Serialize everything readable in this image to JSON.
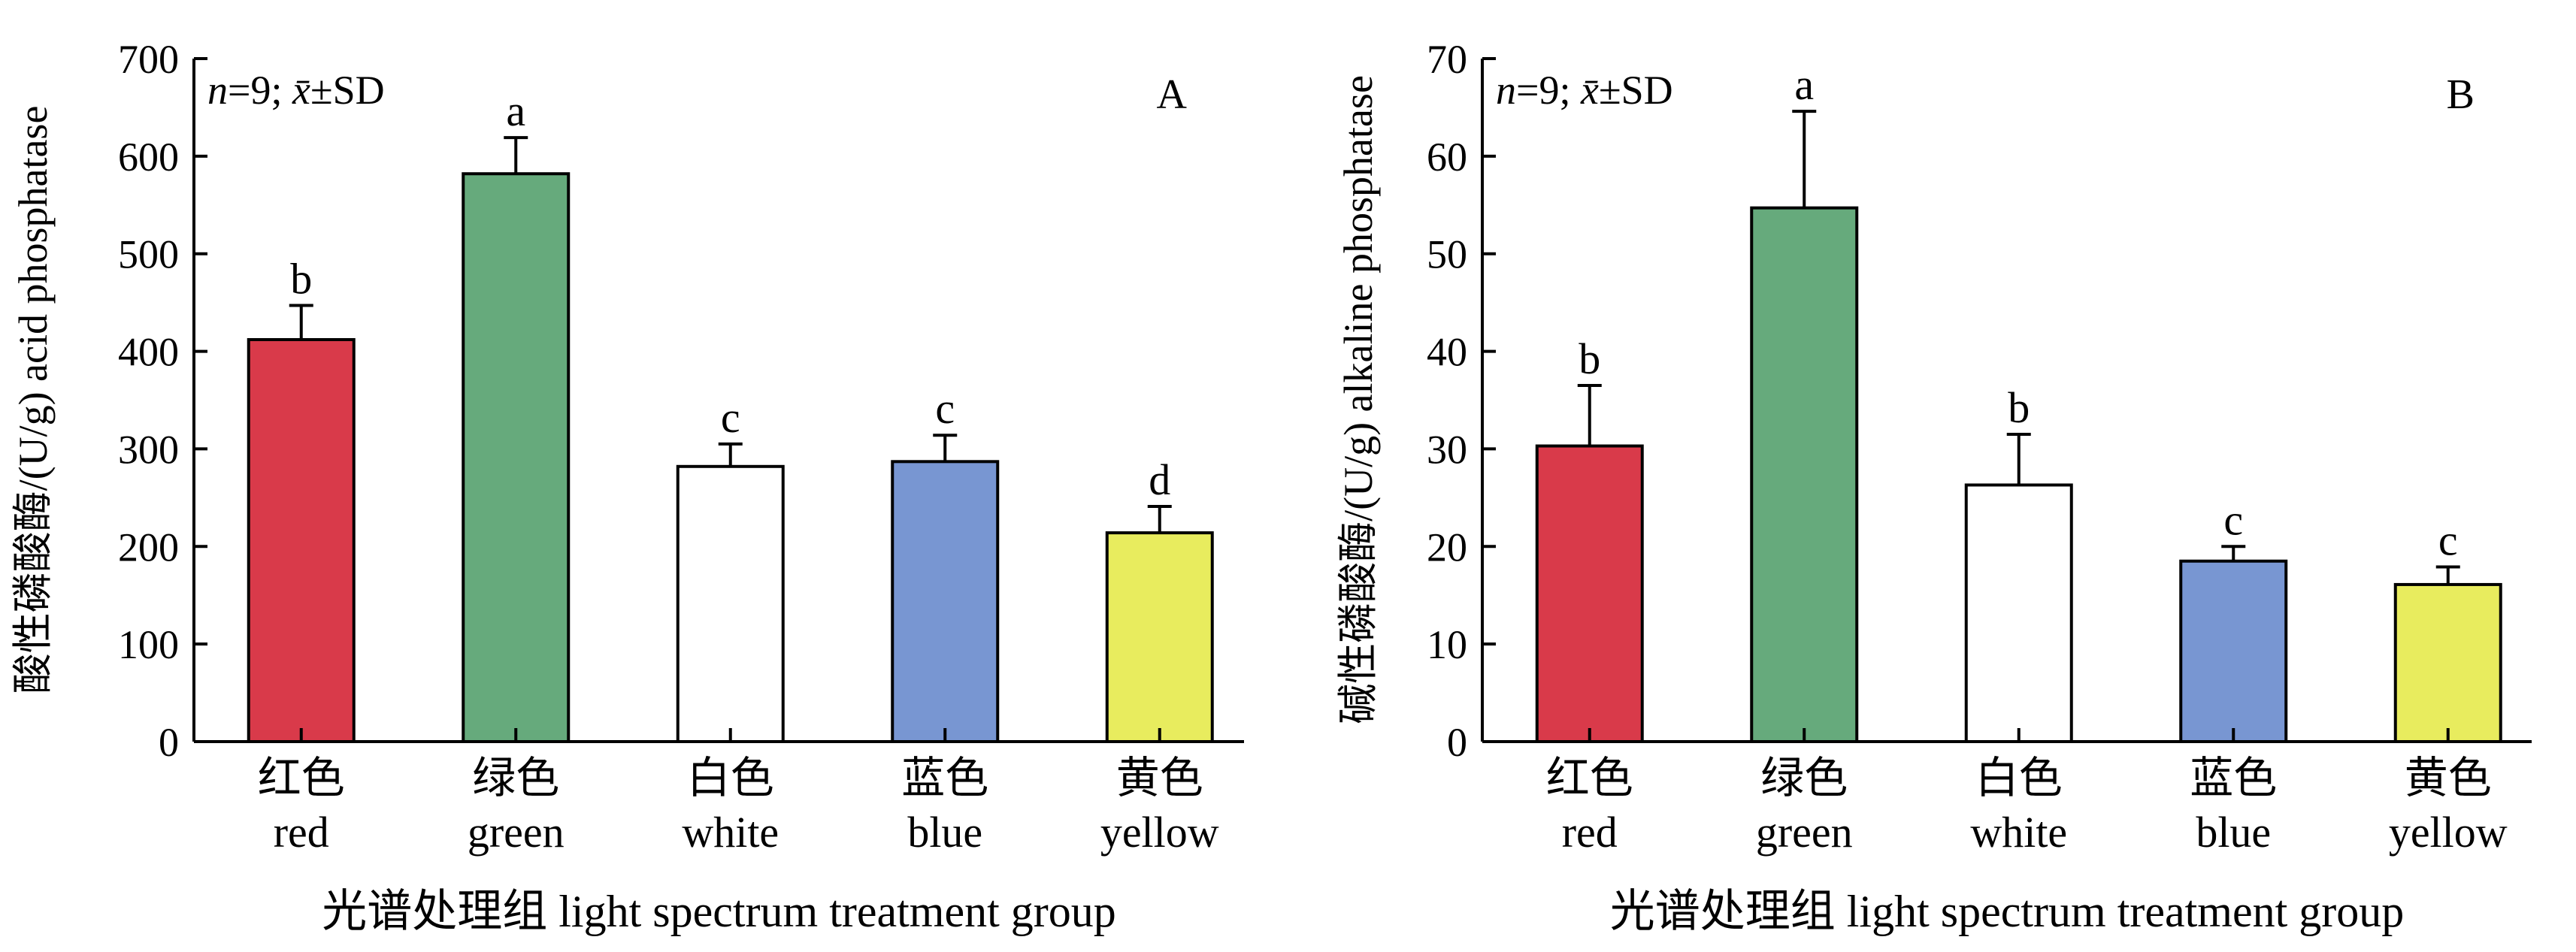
{
  "chart_data": [
    {
      "type": "bar",
      "panel_label": "A",
      "annotation": "n=9; x̄±SD",
      "annotation_parts": {
        "n": "n",
        "rest": "=9; ",
        "xbar": "x̄",
        "pmsd": "±SD"
      },
      "ylabel": "酸性磷酸酶/(U/g) acid phosphatase",
      "xlabel": "光谱处理组 light spectrum treatment group",
      "categories_zh": [
        "红色",
        "绿色",
        "白色",
        "蓝色",
        "黄色"
      ],
      "categories_en": [
        "red",
        "green",
        "white",
        "blue",
        "yellow"
      ],
      "values": [
        412,
        582,
        282,
        287,
        214
      ],
      "errors": [
        35,
        37,
        23,
        27,
        27
      ],
      "significance": [
        "b",
        "a",
        "c",
        "c",
        "d"
      ],
      "colors": [
        "#d93a4a",
        "#66aa7c",
        "#ffffff",
        "#7896d2",
        "#e8ec5e"
      ],
      "ylim": [
        0,
        700
      ],
      "yticks": [
        "0",
        "100",
        "200",
        "300",
        "400",
        "500",
        "600",
        "700"
      ],
      "grid": false
    },
    {
      "type": "bar",
      "panel_label": "B",
      "annotation": "n=9; x̄±SD",
      "annotation_parts": {
        "n": "n",
        "rest": "=9; ",
        "xbar": "x̄",
        "pmsd": "±SD"
      },
      "ylabel": "碱性磷酸酶/(U/g) alkaline phosphatase",
      "xlabel": "光谱处理组 light spectrum treatment group",
      "categories_zh": [
        "红色",
        "绿色",
        "白色",
        "蓝色",
        "黄色"
      ],
      "categories_en": [
        "red",
        "green",
        "white",
        "blue",
        "yellow"
      ],
      "values": [
        30.3,
        54.7,
        26.3,
        18.5,
        16.1
      ],
      "errors": [
        6.2,
        9.9,
        5.2,
        1.5,
        1.8
      ],
      "significance": [
        "b",
        "a",
        "b",
        "c",
        "c"
      ],
      "colors": [
        "#d93a4a",
        "#66aa7c",
        "#ffffff",
        "#7896d2",
        "#e8ec5e"
      ],
      "ylim": [
        0,
        70
      ],
      "yticks": [
        "0",
        "10",
        "20",
        "30",
        "40",
        "50",
        "60",
        "70"
      ],
      "grid": false
    }
  ]
}
